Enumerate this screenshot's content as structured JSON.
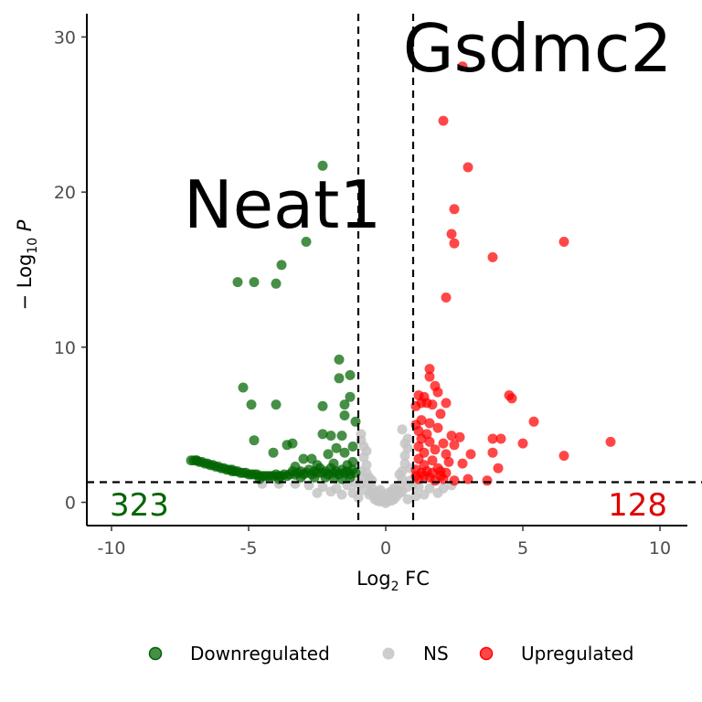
{
  "chart_data": {
    "type": "scatter",
    "title": "",
    "xlabel": {
      "base": "Log",
      "sub": "2",
      "rest": " FC"
    },
    "ylabel": {
      "prefix": "− Log",
      "sub": "10",
      "italic": "P"
    },
    "xlim": [
      -10.9,
      11.0
    ],
    "ylim": [
      -1.5,
      31.5
    ],
    "x_ticks": [
      -10,
      -5,
      0,
      5,
      10
    ],
    "x_tick_labels": [
      "-10",
      "-5",
      "0",
      "5",
      "10"
    ],
    "y_ticks": [
      0,
      10,
      20,
      30
    ],
    "y_tick_labels": [
      "0",
      "10",
      "20",
      "30"
    ],
    "grid": false,
    "legend_position": "bottom",
    "cutoffs": {
      "log2fc": [
        -1,
        1
      ],
      "neg_log10_p": 1.3
    },
    "annotations": {
      "gene_labels": [
        {
          "text": "Gsdmc2",
          "x": 2.6,
          "y": 28.2
        },
        {
          "text": "Neat1",
          "x": -2.9,
          "y": 16.8
        }
      ],
      "counts": [
        {
          "text": "323",
          "color": "#006400",
          "side": "left"
        },
        {
          "text": "128",
          "color": "#e00000",
          "side": "right"
        }
      ]
    },
    "colors": {
      "Downregulated": "#006400",
      "NS": "#c4c4c4",
      "Upregulated": "#ff0000"
    },
    "series": [
      {
        "name": "Downregulated",
        "color": "#006400",
        "points": [
          [
            -2.3,
            21.7
          ],
          [
            -2.9,
            16.8
          ],
          [
            -3.8,
            15.3
          ],
          [
            -4.0,
            14.1
          ],
          [
            -4.8,
            14.2
          ],
          [
            -5.4,
            14.2
          ],
          [
            -1.7,
            9.2
          ],
          [
            -1.3,
            8.2
          ],
          [
            -1.7,
            8.0
          ],
          [
            -5.2,
            7.4
          ],
          [
            -1.3,
            6.8
          ],
          [
            -1.5,
            6.3
          ],
          [
            -4.0,
            6.3
          ],
          [
            -4.9,
            6.3
          ],
          [
            -2.3,
            6.2
          ],
          [
            -1.5,
            5.6
          ],
          [
            -1.1,
            5.2
          ],
          [
            -2.3,
            4.4
          ],
          [
            -1.6,
            4.3
          ],
          [
            -2.0,
            4.3
          ],
          [
            -4.8,
            4.0
          ],
          [
            -3.4,
            3.8
          ],
          [
            -3.6,
            3.7
          ],
          [
            -1.2,
            3.6
          ],
          [
            -1.8,
            3.5
          ],
          [
            -1.5,
            3.2
          ],
          [
            -2.1,
            3.1
          ],
          [
            -4.1,
            3.2
          ],
          [
            -2.7,
            2.8
          ],
          [
            -3.0,
            2.8
          ],
          [
            -1.9,
            2.5
          ],
          [
            -2.5,
            2.4
          ],
          [
            -3.3,
            2.3
          ],
          [
            -1.2,
            2.6
          ],
          [
            -1.4,
            2.4
          ],
          [
            -7.0,
            2.7
          ],
          [
            -6.9,
            2.7
          ],
          [
            -6.8,
            2.6
          ],
          [
            -6.7,
            2.6
          ],
          [
            -6.6,
            2.5
          ],
          [
            -6.5,
            2.5
          ],
          [
            -6.4,
            2.4
          ],
          [
            -6.3,
            2.4
          ],
          [
            -6.2,
            2.3
          ],
          [
            -6.1,
            2.3
          ],
          [
            -6.0,
            2.2
          ],
          [
            -5.9,
            2.2
          ],
          [
            -5.8,
            2.1
          ],
          [
            -5.7,
            2.1
          ],
          [
            -5.6,
            2.0
          ],
          [
            -5.5,
            2.0
          ],
          [
            -5.4,
            2.0
          ],
          [
            -5.3,
            1.9
          ],
          [
            -5.2,
            1.9
          ],
          [
            -5.1,
            1.9
          ],
          [
            -5.0,
            1.8
          ],
          [
            -4.9,
            1.8
          ],
          [
            -4.8,
            1.8
          ],
          [
            -4.7,
            1.8
          ],
          [
            -4.6,
            1.7
          ],
          [
            -4.5,
            1.7
          ],
          [
            -4.4,
            1.7
          ],
          [
            -4.3,
            1.7
          ],
          [
            -4.2,
            1.7
          ],
          [
            -4.1,
            1.7
          ],
          [
            -4.0,
            1.8
          ],
          [
            -3.9,
            1.7
          ],
          [
            -3.8,
            1.7
          ],
          [
            -3.7,
            1.8
          ],
          [
            -3.6,
            1.7
          ],
          [
            -3.5,
            1.8
          ],
          [
            -3.4,
            2.0
          ],
          [
            -3.3,
            1.8
          ],
          [
            -3.2,
            1.9
          ],
          [
            -3.1,
            2.0
          ],
          [
            -3.0,
            1.8
          ],
          [
            -2.9,
            1.9
          ],
          [
            -2.8,
            2.1
          ],
          [
            -2.7,
            1.8
          ],
          [
            -2.6,
            2.0
          ],
          [
            -2.5,
            1.9
          ],
          [
            -2.4,
            2.2
          ],
          [
            -2.3,
            1.9
          ],
          [
            -2.2,
            2.0
          ],
          [
            -2.1,
            1.8
          ],
          [
            -2.0,
            2.2
          ],
          [
            -1.9,
            1.9
          ],
          [
            -1.8,
            2.0
          ],
          [
            -1.7,
            1.8
          ],
          [
            -1.6,
            2.1
          ],
          [
            -1.5,
            1.9
          ],
          [
            -1.4,
            2.0
          ],
          [
            -1.3,
            1.8
          ],
          [
            -1.2,
            2.1
          ],
          [
            -1.1,
            1.9
          ],
          [
            -4.6,
            1.5
          ],
          [
            -3.9,
            1.5
          ],
          [
            -3.1,
            1.6
          ],
          [
            -2.6,
            1.6
          ],
          [
            -2.2,
            1.6
          ],
          [
            -1.9,
            1.6
          ],
          [
            -1.6,
            1.5
          ],
          [
            -1.3,
            1.6
          ],
          [
            -5.6,
            2.1
          ],
          [
            -6.9,
            2.7
          ],
          [
            -7.1,
            2.7
          ]
        ]
      },
      {
        "name": "NS",
        "color": "#c4c4c4",
        "points": [
          [
            -0.9,
            4.4
          ],
          [
            -0.8,
            3.6
          ],
          [
            -0.8,
            2.9
          ],
          [
            -0.7,
            2.4
          ],
          [
            -0.7,
            1.9
          ],
          [
            -0.6,
            1.6
          ],
          [
            -0.6,
            1.2
          ],
          [
            -0.5,
            0.9
          ],
          [
            -0.5,
            0.6
          ],
          [
            -0.4,
            0.4
          ],
          [
            -0.4,
            0.2
          ],
          [
            -0.3,
            0.3
          ],
          [
            -0.3,
            0.1
          ],
          [
            -0.2,
            0.2
          ],
          [
            -0.2,
            0.05
          ],
          [
            -0.1,
            0.1
          ],
          [
            0.0,
            0.1
          ],
          [
            0.0,
            0.3
          ],
          [
            0.1,
            0.1
          ],
          [
            0.1,
            0.2
          ],
          [
            0.2,
            0.1
          ],
          [
            0.2,
            0.3
          ],
          [
            0.3,
            0.2
          ],
          [
            0.3,
            0.5
          ],
          [
            0.4,
            0.4
          ],
          [
            0.4,
            0.8
          ],
          [
            0.5,
            0.6
          ],
          [
            0.5,
            1.1
          ],
          [
            0.6,
            1.5
          ],
          [
            0.6,
            2.0
          ],
          [
            0.7,
            2.5
          ],
          [
            0.7,
            3.0
          ],
          [
            0.8,
            3.5
          ],
          [
            0.8,
            4.1
          ],
          [
            0.6,
            4.7
          ],
          [
            0.9,
            2.2
          ],
          [
            -0.9,
            2.0
          ],
          [
            -0.8,
            1.5
          ],
          [
            -0.9,
            1.2
          ],
          [
            0.9,
            1.4
          ],
          [
            0.8,
            1.0
          ],
          [
            -0.6,
            0.5
          ],
          [
            0.6,
            0.7
          ],
          [
            -1.4,
            1.1
          ],
          [
            -1.8,
            0.9
          ],
          [
            -2.3,
            1.0
          ],
          [
            -2.8,
            1.1
          ],
          [
            -3.3,
            1.2
          ],
          [
            -3.9,
            1.2
          ],
          [
            -4.5,
            1.2
          ],
          [
            -2.0,
            0.7
          ],
          [
            -1.6,
            0.5
          ],
          [
            -1.2,
            0.6
          ],
          [
            -2.5,
            0.6
          ],
          [
            1.2,
            1.0
          ],
          [
            1.6,
            0.9
          ],
          [
            2.1,
            0.9
          ],
          [
            2.4,
            1.1
          ],
          [
            1.9,
            0.6
          ],
          [
            1.4,
            0.5
          ],
          [
            1.1,
            0.4
          ],
          [
            -1.0,
            0.3
          ],
          [
            -0.8,
            0.8
          ],
          [
            0.8,
            0.2
          ],
          [
            0.2,
            0.7
          ],
          [
            -0.2,
            0.8
          ],
          [
            -0.1,
            0.5
          ],
          [
            0.1,
            0.6
          ],
          [
            -0.5,
            1.4
          ],
          [
            0.5,
            1.8
          ],
          [
            -0.7,
            3.3
          ],
          [
            0.7,
            3.8
          ],
          [
            -0.9,
            4.0
          ],
          [
            -0.3,
            0.7
          ],
          [
            0.3,
            0.9
          ],
          [
            0.0,
            -0.05
          ],
          [
            -1.1,
            1.2
          ],
          [
            1.0,
            1.2
          ]
        ]
      },
      {
        "name": "Upregulated",
        "color": "#ff0000",
        "points": [
          [
            2.8,
            28.1
          ],
          [
            2.1,
            24.6
          ],
          [
            3.0,
            21.6
          ],
          [
            2.5,
            18.9
          ],
          [
            2.4,
            17.3
          ],
          [
            2.5,
            16.7
          ],
          [
            6.5,
            16.8
          ],
          [
            3.9,
            15.8
          ],
          [
            2.2,
            13.2
          ],
          [
            1.6,
            8.6
          ],
          [
            1.6,
            8.1
          ],
          [
            1.8,
            7.5
          ],
          [
            1.9,
            7.1
          ],
          [
            1.2,
            6.9
          ],
          [
            1.4,
            6.8
          ],
          [
            1.3,
            6.4
          ],
          [
            1.5,
            6.4
          ],
          [
            1.7,
            6.3
          ],
          [
            2.2,
            6.4
          ],
          [
            1.1,
            6.2
          ],
          [
            4.5,
            6.9
          ],
          [
            4.6,
            6.7
          ],
          [
            2.0,
            5.7
          ],
          [
            1.3,
            5.3
          ],
          [
            1.6,
            5.1
          ],
          [
            1.1,
            5.0
          ],
          [
            1.9,
            4.8
          ],
          [
            5.4,
            5.2
          ],
          [
            1.2,
            4.6
          ],
          [
            1.5,
            4.4
          ],
          [
            2.4,
            4.3
          ],
          [
            2.7,
            4.2
          ],
          [
            3.9,
            4.1
          ],
          [
            4.2,
            4.1
          ],
          [
            8.2,
            3.9
          ],
          [
            5.0,
            3.8
          ],
          [
            1.3,
            4.1
          ],
          [
            1.6,
            3.9
          ],
          [
            2.1,
            3.8
          ],
          [
            2.5,
            3.7
          ],
          [
            1.2,
            3.6
          ],
          [
            1.8,
            3.4
          ],
          [
            1.4,
            3.2
          ],
          [
            2.2,
            3.1
          ],
          [
            3.1,
            3.1
          ],
          [
            3.9,
            3.2
          ],
          [
            6.5,
            3.0
          ],
          [
            1.2,
            2.8
          ],
          [
            1.7,
            2.7
          ],
          [
            2.3,
            2.6
          ],
          [
            2.8,
            2.5
          ],
          [
            4.1,
            2.2
          ],
          [
            1.4,
            2.4
          ],
          [
            1.9,
            2.2
          ],
          [
            1.1,
            2.1
          ],
          [
            1.5,
            2.0
          ],
          [
            2.0,
            2.0
          ],
          [
            1.3,
            1.9
          ],
          [
            1.7,
            1.9
          ],
          [
            2.2,
            1.9
          ],
          [
            3.0,
            1.5
          ],
          [
            3.7,
            1.4
          ],
          [
            1.1,
            1.7
          ],
          [
            1.6,
            1.6
          ],
          [
            2.1,
            1.5
          ],
          [
            2.5,
            1.4
          ],
          [
            1.2,
            1.5
          ],
          [
            1.8,
            1.4
          ],
          [
            1.4,
            1.7
          ],
          [
            2.0,
            1.7
          ]
        ]
      }
    ]
  },
  "legend": {
    "items": [
      {
        "label": "Downregulated",
        "color": "#006400"
      },
      {
        "label": "NS",
        "color": "#c4c4c4"
      },
      {
        "label": "Upregulated",
        "color": "#ff0000"
      }
    ]
  }
}
